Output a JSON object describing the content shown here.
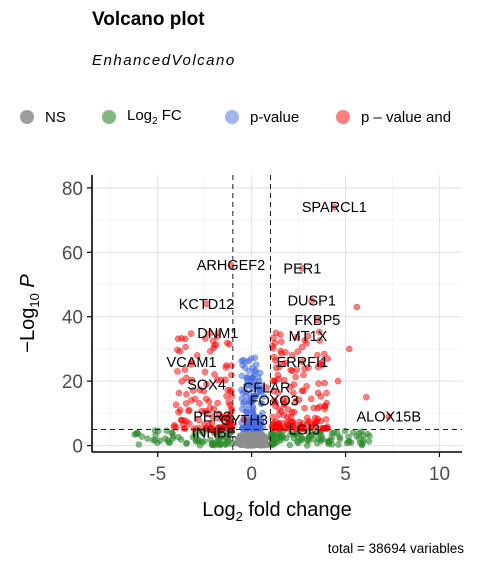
{
  "chart_data": {
    "type": "scatter",
    "title": "Volcano plot",
    "subtitle": "EnhancedVolcano",
    "xlabel": "Log2 fold change",
    "ylabel": "-Log10 P",
    "xlim": [
      -8.5,
      11.2
    ],
    "ylim": [
      -2,
      84
    ],
    "x_ticks": [
      "-5",
      "0",
      "5",
      "10"
    ],
    "y_ticks": [
      "0",
      "20",
      "40",
      "60",
      "80"
    ],
    "grid": true,
    "legend_position": "top",
    "fc_cutoff": [
      -1,
      1
    ],
    "p_cutoff_log10": 5,
    "caption": "total = 38694 variables",
    "legend": [
      {
        "label": "NS",
        "color": "#8c8c8c"
      },
      {
        "label": "Log2 FC",
        "color": "#2e8b2e"
      },
      {
        "label": "p-value",
        "color": "#4169e1"
      },
      {
        "label": "p – value and",
        "color": "#ff0000"
      }
    ],
    "labeled_points": [
      {
        "gene": "SPARCL1",
        "x": 4.4,
        "y": 74
      },
      {
        "gene": "PER1",
        "x": 2.7,
        "y": 55
      },
      {
        "gene": "ARHGEF2",
        "x": -1.1,
        "y": 56
      },
      {
        "gene": "DUSP1",
        "x": 3.2,
        "y": 45
      },
      {
        "gene": "FKBP5",
        "x": 3.5,
        "y": 39
      },
      {
        "gene": "KCTD12",
        "x": -2.4,
        "y": 44
      },
      {
        "gene": "MT1X",
        "x": 3.0,
        "y": 34
      },
      {
        "gene": "DNM1",
        "x": -1.8,
        "y": 35
      },
      {
        "gene": "ERRFI1",
        "x": 2.7,
        "y": 26
      },
      {
        "gene": "VCAM1",
        "x": -3.2,
        "y": 26
      },
      {
        "gene": "SOX4",
        "x": -2.4,
        "y": 19
      },
      {
        "gene": "CFLAR",
        "x": 0.8,
        "y": 18
      },
      {
        "gene": "ALOX15B",
        "x": 7.3,
        "y": 9
      },
      {
        "gene": "FOXO3",
        "x": 1.2,
        "y": 14
      },
      {
        "gene": "PER3",
        "x": -2.1,
        "y": 9
      },
      {
        "gene": "CYTH3",
        "x": -0.4,
        "y": 8
      },
      {
        "gene": "INHBE",
        "x": -2.0,
        "y": 4
      },
      {
        "gene": "LGI3",
        "x": 2.8,
        "y": 5
      }
    ]
  }
}
